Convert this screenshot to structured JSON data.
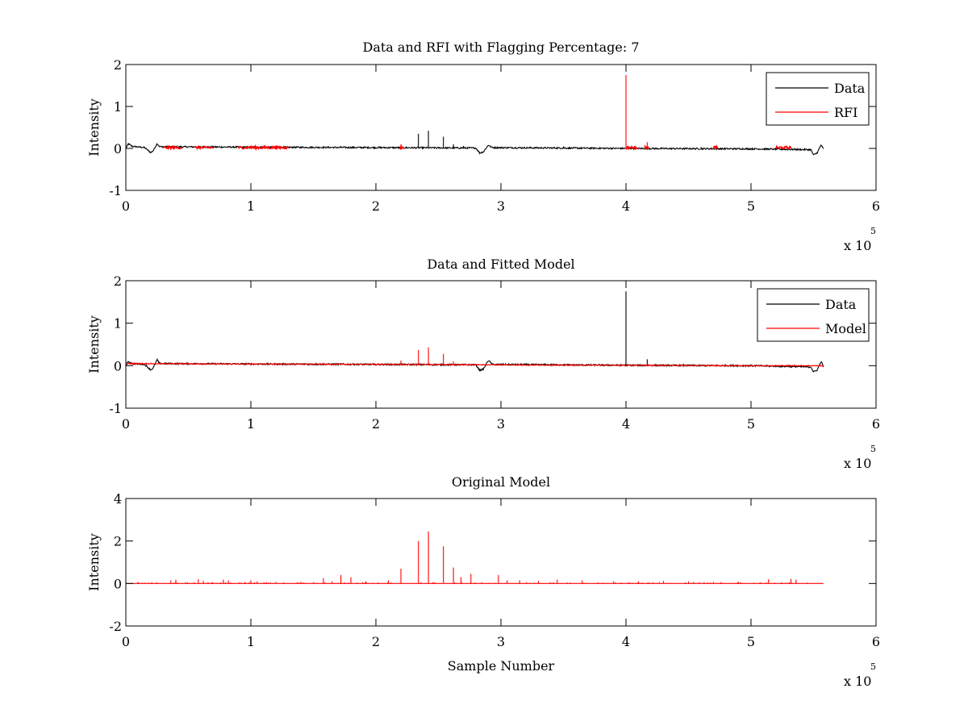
{
  "chart_data": [
    {
      "type": "line",
      "title": "Data and RFI with Flagging Percentage: 7",
      "xlabel": "",
      "ylabel": "Intensity",
      "xlim": [
        0,
        6
      ],
      "ylim": [
        -1,
        2
      ],
      "xticks": [
        "0",
        "1",
        "2",
        "3",
        "4",
        "5",
        "6"
      ],
      "yticks": [
        "-1",
        "0",
        "1",
        "2"
      ],
      "x_exponent": {
        "base": "x 10",
        "power": "5"
      },
      "legend": {
        "position": "top-right",
        "entries": [
          {
            "label": "Data",
            "color": "#000000"
          },
          {
            "label": "RFI",
            "color": "#ff0000"
          }
        ]
      },
      "series": [
        {
          "name": "Data",
          "color": "#000000",
          "baseline_points": [
            [
              0.0,
              0.0
            ],
            [
              0.02,
              0.11
            ],
            [
              0.05,
              0.05
            ],
            [
              0.15,
              0.02
            ],
            [
              0.2,
              -0.1
            ],
            [
              0.22,
              -0.05
            ],
            [
              0.25,
              0.12
            ],
            [
              0.27,
              0.04
            ],
            [
              1.0,
              0.03
            ],
            [
              2.0,
              0.02
            ],
            [
              2.8,
              0.01
            ],
            [
              2.83,
              -0.11
            ],
            [
              2.86,
              -0.08
            ],
            [
              2.9,
              0.08
            ],
            [
              2.93,
              0.02
            ],
            [
              4.0,
              0.0
            ],
            [
              5.0,
              -0.01
            ],
            [
              5.48,
              -0.03
            ],
            [
              5.5,
              -0.16
            ],
            [
              5.53,
              -0.1
            ],
            [
              5.56,
              0.08
            ],
            [
              5.58,
              -0.02
            ]
          ],
          "spikes": [
            [
              2.34,
              0.35
            ],
            [
              2.42,
              0.42
            ],
            [
              2.54,
              0.28
            ],
            [
              2.62,
              0.1
            ],
            [
              2.7,
              0.06
            ],
            [
              1.72,
              0.06
            ],
            [
              0.6,
              0.04
            ],
            [
              3.5,
              0.05
            ],
            [
              4.6,
              0.04
            ]
          ]
        },
        {
          "name": "RFI",
          "color": "#ff0000",
          "segments": [
            [
              0.3,
              0.45
            ],
            [
              0.55,
              0.7
            ],
            [
              0.9,
              1.3
            ],
            [
              2.19,
              2.22
            ],
            [
              4.0,
              4.1
            ],
            [
              4.15,
              4.18
            ],
            [
              4.7,
              4.73
            ],
            [
              5.2,
              5.32
            ]
          ],
          "segment_level": 0.0,
          "spikes": [
            [
              2.2,
              0.1
            ],
            [
              4.0,
              1.75
            ],
            [
              4.17,
              0.15
            ],
            [
              4.72,
              0.06
            ],
            [
              1.02,
              0.06
            ],
            [
              0.63,
              0.04
            ],
            [
              5.25,
              0.03
            ]
          ]
        }
      ]
    },
    {
      "type": "line",
      "title": "Data and Fitted Model",
      "xlabel": "",
      "ylabel": "Intensity",
      "xlim": [
        0,
        6
      ],
      "ylim": [
        -1,
        2
      ],
      "xticks": [
        "0",
        "1",
        "2",
        "3",
        "4",
        "5",
        "6"
      ],
      "yticks": [
        "-1",
        "0",
        "1",
        "2"
      ],
      "x_exponent": {
        "base": "x 10",
        "power": "5"
      },
      "legend": {
        "position": "top-right",
        "entries": [
          {
            "label": "Data",
            "color": "#000000"
          },
          {
            "label": "Model",
            "color": "#ff0000"
          }
        ]
      },
      "series": [
        {
          "name": "Data",
          "color": "#000000",
          "baseline_points": [
            [
              0.0,
              0.0
            ],
            [
              0.02,
              0.1
            ],
            [
              0.05,
              0.05
            ],
            [
              0.15,
              0.03
            ],
            [
              0.2,
              -0.1
            ],
            [
              0.22,
              -0.05
            ],
            [
              0.25,
              0.14
            ],
            [
              0.27,
              0.05
            ],
            [
              1.0,
              0.04
            ],
            [
              2.0,
              0.03
            ],
            [
              2.8,
              0.02
            ],
            [
              2.83,
              -0.11
            ],
            [
              2.86,
              -0.08
            ],
            [
              2.9,
              0.13
            ],
            [
              2.93,
              0.03
            ],
            [
              4.0,
              0.01
            ],
            [
              5.0,
              0.0
            ],
            [
              5.48,
              -0.03
            ],
            [
              5.5,
              -0.15
            ],
            [
              5.53,
              -0.1
            ],
            [
              5.56,
              0.1
            ],
            [
              5.58,
              -0.02
            ]
          ],
          "spikes": [
            [
              4.0,
              1.75
            ],
            [
              4.17,
              0.15
            ],
            [
              1.72,
              0.06
            ],
            [
              2.2,
              0.08
            ]
          ]
        },
        {
          "name": "Model",
          "color": "#ff0000",
          "baseline_points": [
            [
              0.0,
              0.05
            ],
            [
              1.0,
              0.04
            ],
            [
              2.0,
              0.03
            ],
            [
              3.0,
              0.02
            ],
            [
              4.0,
              0.01
            ],
            [
              5.0,
              0.0
            ],
            [
              5.58,
              0.0
            ]
          ],
          "spikes": [
            [
              2.34,
              0.37
            ],
            [
              2.42,
              0.43
            ],
            [
              2.54,
              0.28
            ],
            [
              2.62,
              0.1
            ],
            [
              2.2,
              0.12
            ],
            [
              1.72,
              0.05
            ],
            [
              0.8,
              0.04
            ],
            [
              3.4,
              0.03
            ]
          ]
        }
      ]
    },
    {
      "type": "line",
      "title": "Original Model",
      "xlabel": "Sample Number",
      "ylabel": "Intensity",
      "xlim": [
        0,
        6
      ],
      "ylim": [
        -2,
        4
      ],
      "xticks": [
        "0",
        "1",
        "2",
        "3",
        "4",
        "5",
        "6"
      ],
      "yticks": [
        "-2",
        "0",
        "2",
        "4"
      ],
      "x_exponent": {
        "base": "x 10",
        "power": "5"
      },
      "series": [
        {
          "color": "#ff0000",
          "baseline_points": [
            [
              0.0,
              0.0
            ],
            [
              5.58,
              0.0
            ]
          ],
          "spikes": [
            [
              0.36,
              0.15
            ],
            [
              0.4,
              0.18
            ],
            [
              0.58,
              0.2
            ],
            [
              0.62,
              0.12
            ],
            [
              0.78,
              0.18
            ],
            [
              0.82,
              0.15
            ],
            [
              1.0,
              0.15
            ],
            [
              1.05,
              0.1
            ],
            [
              1.2,
              0.08
            ],
            [
              1.4,
              0.08
            ],
            [
              1.58,
              0.25
            ],
            [
              1.65,
              0.1
            ],
            [
              1.72,
              0.4
            ],
            [
              1.8,
              0.3
            ],
            [
              1.92,
              0.1
            ],
            [
              2.1,
              0.15
            ],
            [
              2.2,
              0.7
            ],
            [
              2.34,
              2.0
            ],
            [
              2.42,
              2.45
            ],
            [
              2.54,
              1.75
            ],
            [
              2.62,
              0.75
            ],
            [
              2.68,
              0.3
            ],
            [
              2.76,
              0.45
            ],
            [
              2.98,
              0.4
            ],
            [
              3.05,
              0.15
            ],
            [
              3.15,
              0.15
            ],
            [
              3.3,
              0.12
            ],
            [
              3.45,
              0.18
            ],
            [
              3.65,
              0.15
            ],
            [
              3.9,
              0.1
            ],
            [
              4.1,
              0.1
            ],
            [
              4.3,
              0.12
            ],
            [
              4.5,
              0.1
            ],
            [
              4.7,
              0.08
            ],
            [
              4.9,
              0.08
            ],
            [
              5.14,
              0.2
            ],
            [
              5.32,
              0.22
            ],
            [
              5.36,
              0.18
            ]
          ],
          "small_spike_height": 0.06
        }
      ]
    }
  ]
}
